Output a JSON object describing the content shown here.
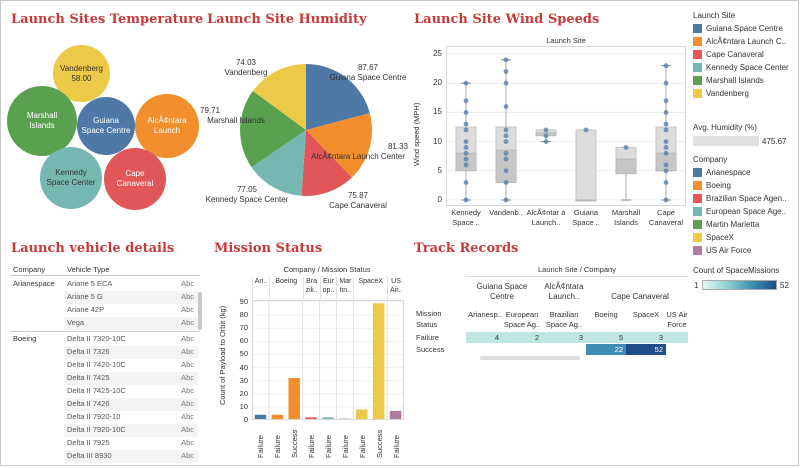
{
  "titles": {
    "temperature": "Launch Sites Temperature",
    "humidity": "Launch Site Humidity",
    "wind": "Launch Site Wind Speeds",
    "vehicles": "Launch vehicle details",
    "mission": "Mission Status",
    "track": "Track Records"
  },
  "colors": {
    "guiana": "#4e79a7",
    "alcantara": "#f28e2b",
    "canaveral": "#e15759",
    "kennedy": "#76b7b2",
    "marshall": "#59a14f",
    "vandenberg": "#edc948",
    "arianespace": "#4e79a7",
    "boeing": "#f28e2b",
    "brazilian": "#e15759",
    "european": "#76b7b2",
    "martin": "#59a14f",
    "spacex": "#edc948",
    "usaf": "#b07aa1"
  },
  "temperature": {
    "bubbles": [
      {
        "label": "Vandenberg",
        "value": "58.00",
        "color": "#edc948"
      },
      {
        "label": "Marshall Islands",
        "color": "#59a14f"
      },
      {
        "label": "Guiana Space Centre",
        "color": "#4e79a7"
      },
      {
        "label": "AlcÃ¢ntara Launch",
        "color": "#f28e2b"
      },
      {
        "label": "Kennedy Space Center",
        "color": "#76b7b2"
      },
      {
        "label": "Cape Canaveral",
        "color": "#e15759"
      }
    ]
  },
  "humidity": {
    "labels": [
      {
        "value": "74.03",
        "name": "Vandenberg"
      },
      {
        "value": "87.67",
        "name": "Guiana Space Centre"
      },
      {
        "value": "79.71",
        "name": "Marshall Islands"
      },
      {
        "value": "81.33",
        "name": "AlcÃ¢ntara Launch Center"
      },
      {
        "value": "77.05",
        "name": "Kennedy Space Center"
      },
      {
        "value": "75.87",
        "name": "Cape Canaveral"
      }
    ]
  },
  "wind": {
    "header": "Launch Site",
    "ylabel": "Wind speed (MPH)",
    "yticks": [
      "25",
      "20",
      "15",
      "10",
      "5",
      "0"
    ],
    "sites": [
      "Kennedy Space ..",
      "Vandenb..",
      "AlcÃ¢ntar a Launch..",
      "Guiana Space ..",
      "Marshall Islands",
      "Cape Canaveral"
    ]
  },
  "chart_data": [
    {
      "type": "bubble",
      "title": "Launch Sites Temperature",
      "categories": [
        "Vandenberg",
        "Marshall Islands",
        "Guiana Space Centre",
        "AlcÃ¢ntara Launch",
        "Kennedy Space Center",
        "Cape Canaveral"
      ],
      "labels_shown": {
        "Vandenberg": 58.0
      }
    },
    {
      "type": "pie",
      "title": "Launch Site Humidity",
      "categories": [
        "Guiana Space Centre",
        "AlcÃ¢ntara Launch Center",
        "Cape Canaveral",
        "Kennedy Space Center",
        "Marshall Islands",
        "Vandenberg"
      ],
      "values": [
        87.67,
        81.33,
        75.87,
        77.05,
        79.71,
        74.03
      ]
    },
    {
      "type": "boxplot",
      "title": "Launch Site Wind Speeds",
      "ylabel": "Wind speed (MPH)",
      "ylim": [
        0,
        25
      ],
      "categories": [
        "Kennedy Space ..",
        "Vandenb..",
        "AlcÃ¢ntar a Launch..",
        "Guiana Space ..",
        "Marshall Islands",
        "Cape Canaveral"
      ],
      "boxes": [
        {
          "min": 0,
          "q1": 5,
          "median": 8,
          "q3": 12.5,
          "max": 20
        },
        {
          "min": 0,
          "q1": 3,
          "median": 8.5,
          "q3": 12.5,
          "max": 24
        },
        {
          "min": 10,
          "q1": 11,
          "median": 11.5,
          "q3": 12,
          "max": 12
        },
        {
          "min": 0,
          "q1": 0,
          "median": 0,
          "q3": 12,
          "max": 12
        },
        {
          "min": 0,
          "q1": 4.5,
          "median": 7,
          "q3": 9,
          "max": 9
        },
        {
          "min": 0,
          "q1": 5,
          "median": 8,
          "q3": 12.5,
          "max": 23
        }
      ],
      "points": [
        [
          20,
          17,
          15,
          13,
          12,
          10,
          9,
          8,
          7,
          6,
          3,
          0
        ],
        [
          24,
          22,
          20,
          16,
          12,
          11,
          10,
          8,
          7,
          5,
          3,
          0
        ],
        [
          12,
          11,
          10
        ],
        [
          12
        ],
        [
          9
        ],
        [
          23,
          20,
          17,
          15,
          13,
          12,
          10,
          9,
          8,
          6,
          5,
          3,
          0
        ]
      ]
    },
    {
      "type": "bar",
      "title": "Mission Status",
      "ylabel": "Count of Payload to Orbit (kg)",
      "ylim": [
        0,
        90
      ],
      "categories": [
        "Ari.. Failure",
        "Boeing Failure",
        "Boeing Success",
        "Bra zili.. Failure",
        "Eur op.. Failure",
        "Mar tin.. Failure",
        "SpaceX Failure",
        "SpaceX Success",
        "US Air.. Failure"
      ],
      "values": [
        4,
        4,
        32,
        2,
        2,
        1,
        8,
        89,
        7
      ]
    },
    {
      "type": "heatmap",
      "title": "Track Records",
      "rows": [
        "Failure",
        "Success"
      ],
      "columns": [
        "Arianespace (Guiana Space Centre)",
        "European Space Ag.. (Guiana Space Centre)",
        "Brazilian Space Ag.. (AlcÃ¢ntara)",
        "Boeing (Cape Canaveral)",
        "SpaceX (Cape Canaveral)",
        "US Air Force (Cape Canaveral)"
      ],
      "values": [
        [
          4,
          2,
          3,
          5,
          3,
          null
        ],
        [
          null,
          null,
          null,
          22,
          52,
          null
        ]
      ]
    }
  ],
  "legend": {
    "site_title": "Launch Site",
    "sites": [
      "Guiana Space Centre",
      "AlcÃ¢ntara Launch C..",
      "Cape Canaveral",
      "Kennedy Space Center",
      "Marshall Islands",
      "Vandenberg"
    ],
    "humidity_title": "Avg. Humidity (%)",
    "humidity_value": "475.67",
    "company_title": "Company",
    "companies": [
      "Arianespace",
      "Boeing",
      "Brazilian Space Agen..",
      "European Space Age..",
      "Martin Marietta",
      "SpaceX",
      "US Air Force"
    ],
    "count_title": "Count of SpaceMissions",
    "count_min": "1",
    "count_max": "52"
  },
  "vehicles": {
    "col_company": "Company",
    "col_vehicle": "Vehicle Type",
    "abc": "Abc",
    "groups": [
      {
        "company": "Arianespace",
        "items": [
          "Ariane 5 ECA",
          "Ariane 5 G",
          "Ariane 42P",
          "Vega"
        ]
      },
      {
        "company": "Boeing",
        "items": [
          "Delta II 7320-10C",
          "Delta II 7326",
          "Delta II 7420-10C",
          "Delta II 7425",
          "Delta II 7425-10C",
          "Delta II 7426",
          "Delta II 7920-10",
          "Delta II 7920-10C",
          "Delta II 7925",
          "Delta III 8930"
        ]
      }
    ]
  },
  "mission": {
    "header": "Company / Mission Status",
    "companies": [
      "Ari..",
      "Boeing",
      "Bra zili..",
      "Eur op..",
      "Mar tin..",
      "SpaceX",
      "US Air.."
    ],
    "ylabel": "Count of Payload to Orbit (kg)",
    "yticks": [
      "90",
      "80",
      "70",
      "60",
      "50",
      "40",
      "30",
      "20",
      "10",
      "0"
    ],
    "bars": [
      {
        "label": "Failure"
      },
      {
        "label": "Failure"
      },
      {
        "label": "Success"
      },
      {
        "label": "Failure"
      },
      {
        "label": "Failure"
      },
      {
        "label": "Failure"
      },
      {
        "label": "Failure"
      },
      {
        "label": "Success"
      },
      {
        "label": "Failure"
      }
    ]
  },
  "track": {
    "header": "Launch Site / Company",
    "row_header": "Mission Status",
    "sites": [
      "Guiana Space Centre",
      "AlcÃ¢ntara Launch..",
      "Cape Canaveral"
    ],
    "companies": [
      "Arianesp..",
      "European Space Ag..",
      "Brazilian Space Ag..",
      "Boeing",
      "SpaceX",
      "US Air Force"
    ],
    "rows": [
      "Failure",
      "Success"
    ],
    "failure": [
      "4",
      "2",
      "3",
      "5",
      "3",
      ""
    ],
    "success": [
      "",
      "",
      "",
      "22",
      "52",
      ""
    ]
  }
}
